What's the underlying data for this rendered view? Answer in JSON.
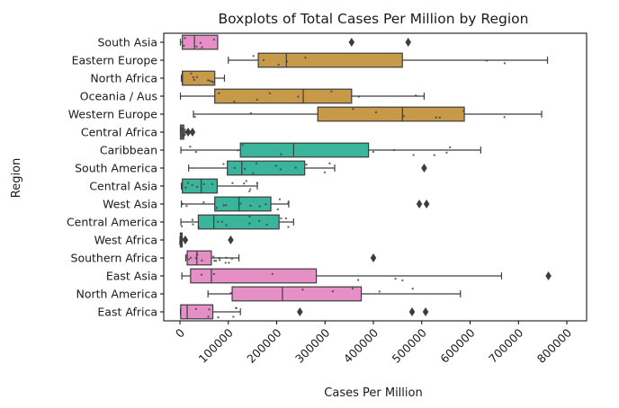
{
  "chart_data": {
    "type": "boxplot",
    "title": "Boxplots of Total Cases Per Million by Region",
    "xlabel": "Cases Per Million",
    "ylabel": "Region",
    "xlim": [
      0,
      800000
    ],
    "xticks": [
      0,
      100000,
      200000,
      300000,
      400000,
      500000,
      600000,
      700000,
      800000
    ],
    "xtick_labels": [
      "0",
      "100000",
      "200000",
      "300000",
      "400000",
      "500000",
      "600000",
      "700000",
      "800000"
    ],
    "tick_rotation": 45,
    "grid": false,
    "legend": "none",
    "series": [
      {
        "category": "South Asia",
        "color": "#e68fc6",
        "whislo": 1000,
        "q1": 5000,
        "med": 30000,
        "q3": 78000,
        "whishi": 78000,
        "fliers": [
          355000,
          472000
        ]
      },
      {
        "category": "Eastern Europe",
        "color": "#c79a4a",
        "whislo": 100000,
        "q1": 162000,
        "med": 220000,
        "q3": 460000,
        "whishi": 760000,
        "fliers": []
      },
      {
        "category": "North Africa",
        "color": "#c79a4a",
        "whislo": 3000,
        "q1": 5000,
        "med": 5000,
        "q3": 72000,
        "whishi": 92000,
        "fliers": []
      },
      {
        "category": "Oceania / Aus",
        "color": "#c79a4a",
        "whislo": 1000,
        "q1": 72000,
        "med": 255000,
        "q3": 355000,
        "whishi": 505000,
        "fliers": []
      },
      {
        "category": "Western Europe",
        "color": "#c79a4a",
        "whislo": 28000,
        "q1": 285000,
        "med": 460000,
        "q3": 588000,
        "whishi": 748000,
        "fliers": []
      },
      {
        "category": "Central Africa",
        "color": "#c79a4a",
        "whislo": 1000,
        "q1": 1000,
        "med": 4000,
        "q3": 8000,
        "whishi": 11000,
        "fliers": [
          17000,
          26000
        ]
      },
      {
        "category": "Caribbean",
        "color": "#3ab49a",
        "whislo": 2000,
        "q1": 125000,
        "med": 235000,
        "q3": 390000,
        "whishi": 622000,
        "fliers": []
      },
      {
        "category": "South America",
        "color": "#3ab49a",
        "whislo": 18000,
        "q1": 98000,
        "med": 128000,
        "q3": 258000,
        "whishi": 320000,
        "fliers": [
          505000
        ]
      },
      {
        "category": "Central Asia",
        "color": "#3ab49a",
        "whislo": 3000,
        "q1": 5000,
        "med": 44000,
        "q3": 77000,
        "whishi": 160000,
        "fliers": []
      },
      {
        "category": "West Asia",
        "color": "#3ab49a",
        "whislo": 3000,
        "q1": 72000,
        "med": 122000,
        "q3": 188000,
        "whishi": 225000,
        "fliers": [
          495000,
          510000
        ]
      },
      {
        "category": "Central America",
        "color": "#3ab49a",
        "whislo": 2000,
        "q1": 38000,
        "med": 70000,
        "q3": 205000,
        "whishi": 235000,
        "fliers": []
      },
      {
        "category": "West Africa",
        "color": "#e68fc6",
        "whislo": 100,
        "q1": 800,
        "med": 2000,
        "q3": 3000,
        "whishi": 4500,
        "fliers": [
          11000,
          105000
        ]
      },
      {
        "category": "Southern Africa",
        "color": "#e68fc6",
        "whislo": 12000,
        "q1": 15000,
        "med": 35000,
        "q3": 65000,
        "whishi": 122000,
        "fliers": [
          400000
        ]
      },
      {
        "category": "East Asia",
        "color": "#e68fc6",
        "whislo": 4000,
        "q1": 22000,
        "med": 65000,
        "q3": 282000,
        "whishi": 665000,
        "fliers": [
          762000
        ]
      },
      {
        "category": "North America",
        "color": "#e68fc6",
        "whislo": 58000,
        "q1": 108000,
        "med": 212000,
        "q3": 375000,
        "whishi": 580000,
        "fliers": []
      },
      {
        "category": "East Africa",
        "color": "#e68fc6",
        "whislo": 1000,
        "q1": 1500,
        "med": 15000,
        "q3": 68000,
        "whishi": 125000,
        "fliers": [
          248000,
          480000,
          508000
        ]
      }
    ]
  }
}
